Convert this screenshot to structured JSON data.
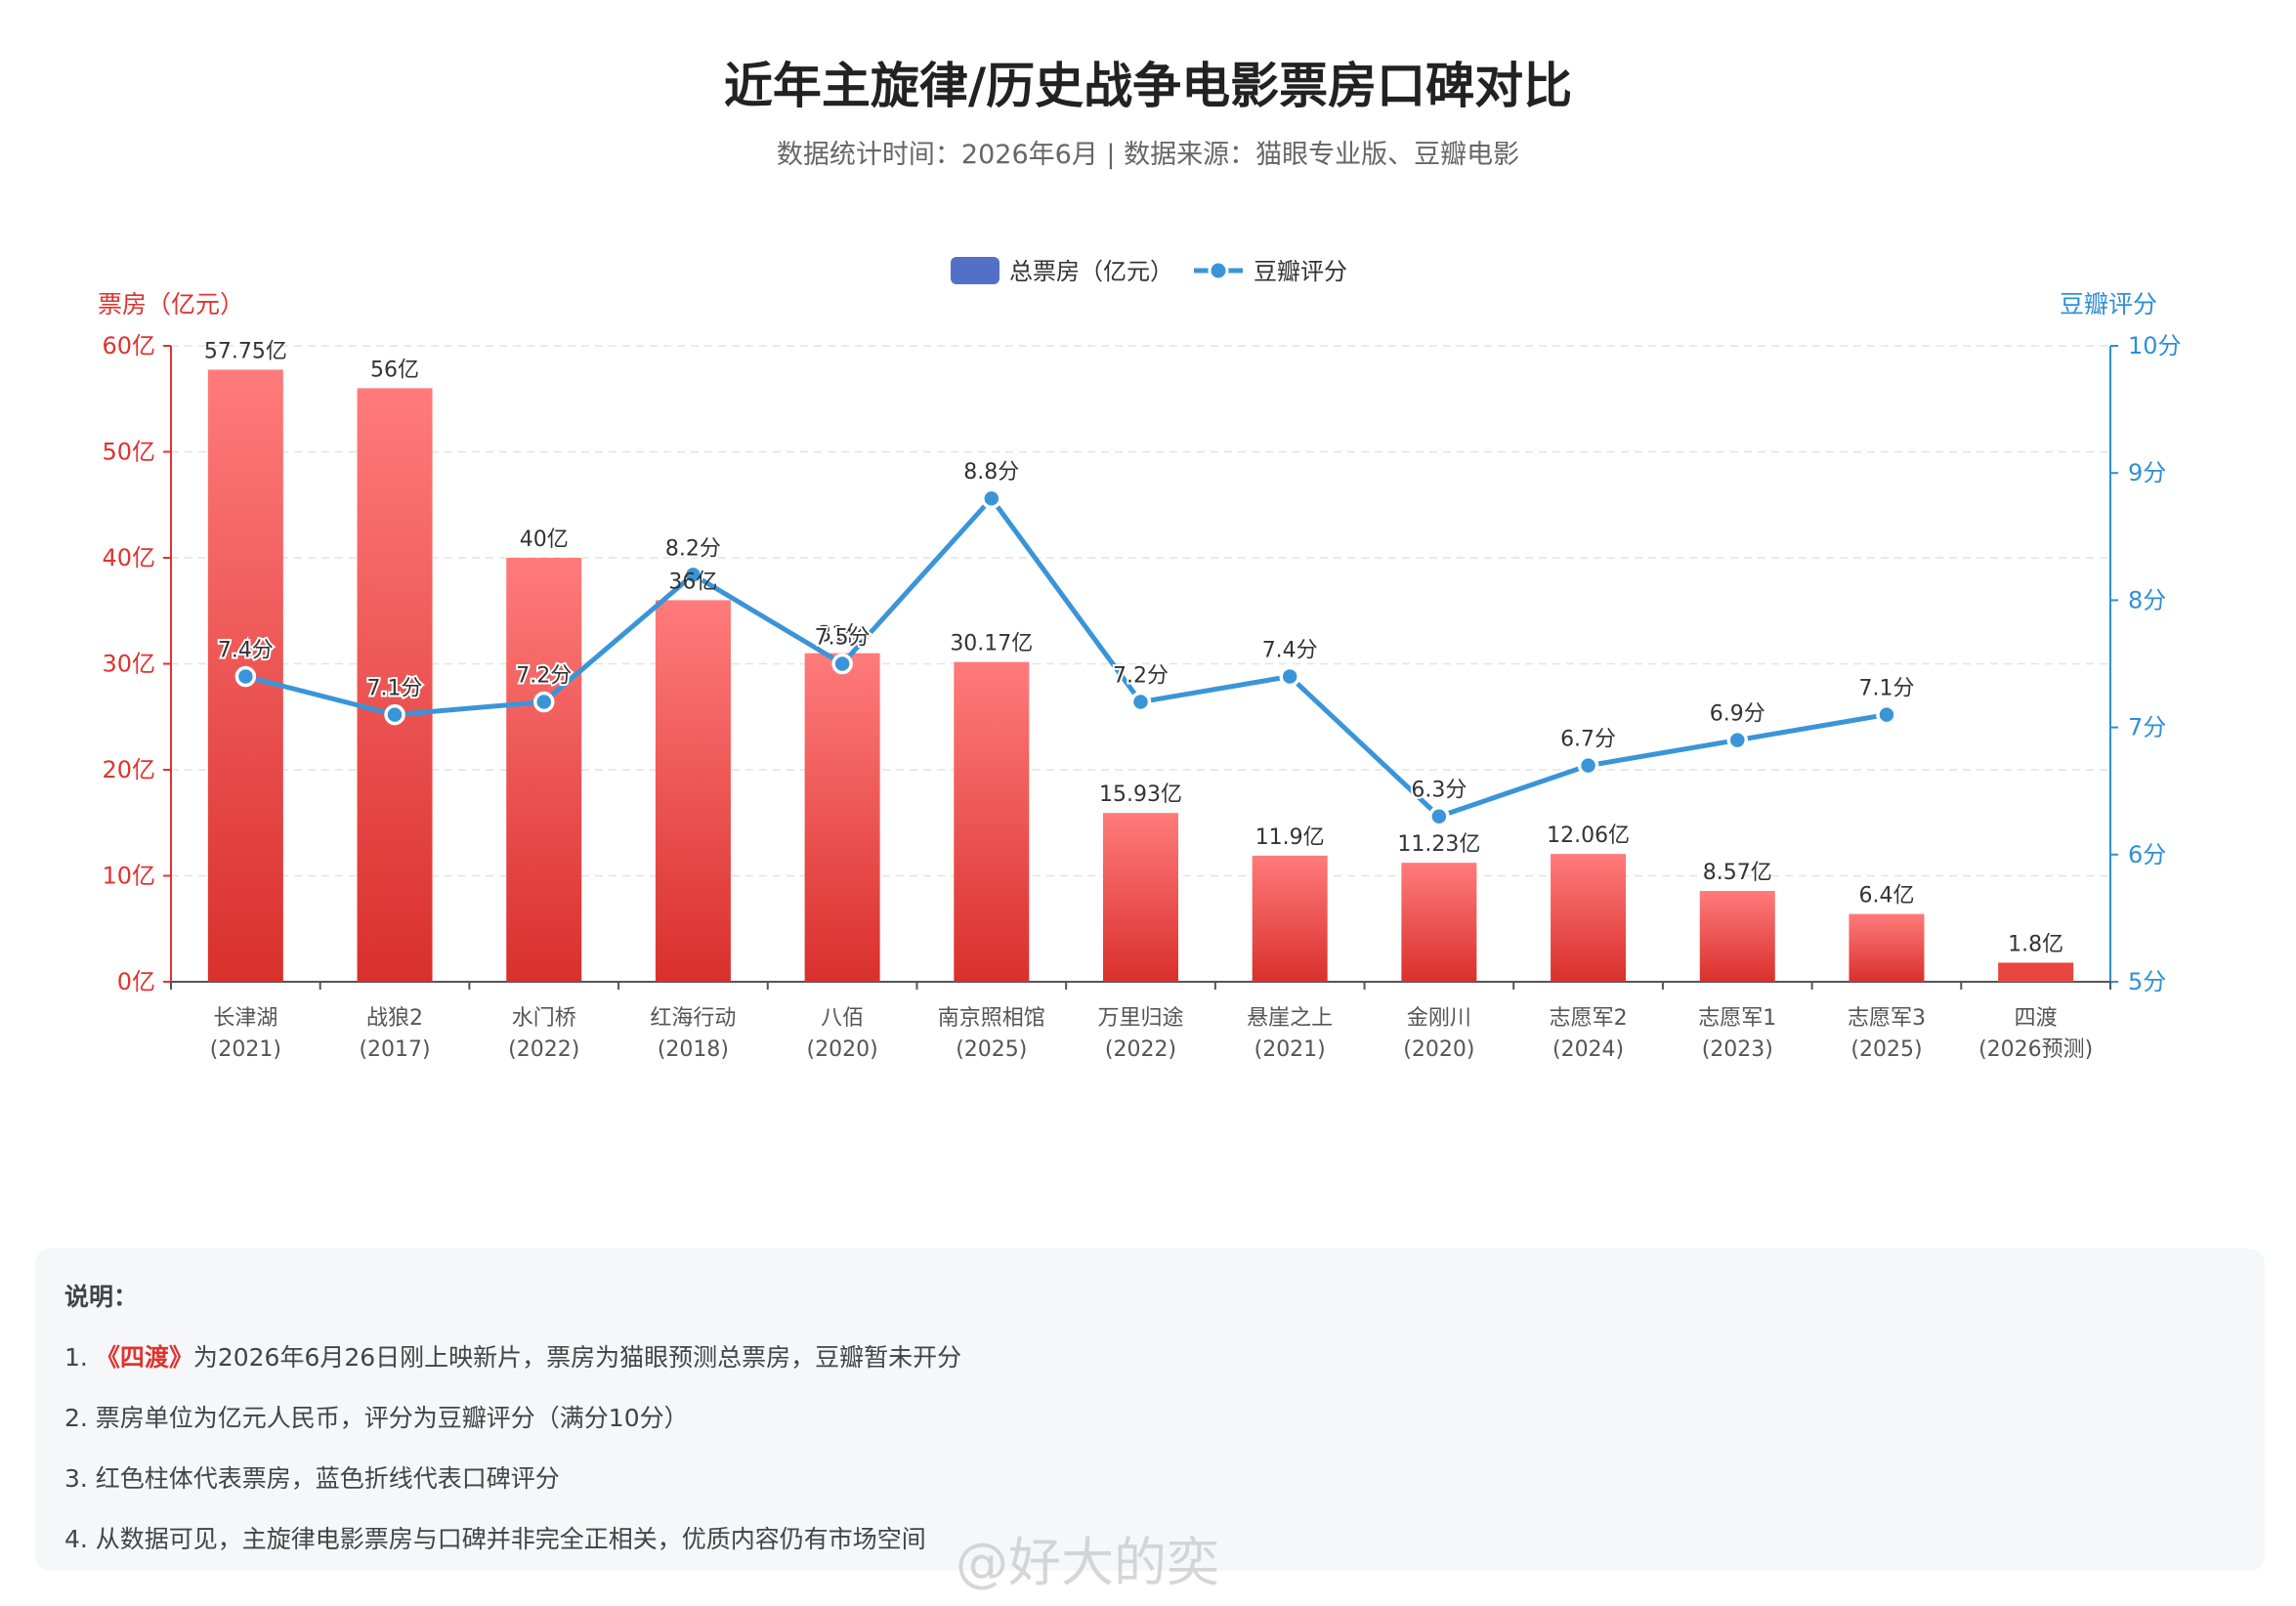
{
  "title": "近年主旋律/历史战争电影票房口碑对比",
  "subtitle": "数据统计时间：2026年6月 | 数据来源：猫眼专业版、豆瓣电影",
  "chart_data": {
    "type": "bar",
    "categories": [
      [
        "长津湖",
        "(2021)"
      ],
      [
        "战狼2",
        "(2017)"
      ],
      [
        "水门桥",
        "(2022)"
      ],
      [
        "红海行动",
        "(2018)"
      ],
      [
        "八佰",
        "(2020)"
      ],
      [
        "南京照相馆",
        "(2025)"
      ],
      [
        "万里归途",
        "(2022)"
      ],
      [
        "悬崖之上",
        "(2021)"
      ],
      [
        "金刚川",
        "(2020)"
      ],
      [
        "志愿军2",
        "(2024)"
      ],
      [
        "志愿军1",
        "(2023)"
      ],
      [
        "志愿军3",
        "(2025)"
      ],
      [
        "四渡",
        "(2026预测)"
      ]
    ],
    "series": [
      {
        "name": "总票房（亿元）",
        "type": "bar",
        "axis": "left",
        "values": [
          57.75,
          56,
          40,
          36,
          31,
          30.17,
          15.93,
          11.9,
          11.23,
          12.06,
          8.57,
          6.4,
          1.8
        ],
        "labels": [
          "57.75亿",
          "56亿",
          "40亿",
          "36亿",
          "31亿",
          "30.17亿",
          "15.93亿",
          "11.9亿",
          "11.23亿",
          "12.06亿",
          "8.57亿",
          "6.4亿",
          "1.8亿"
        ]
      },
      {
        "name": "豆瓣评分",
        "type": "line",
        "axis": "right",
        "values": [
          7.4,
          7.1,
          7.2,
          8.2,
          7.5,
          8.8,
          7.2,
          7.4,
          6.3,
          6.7,
          6.9,
          7.1,
          null
        ],
        "labels": [
          "7.4分",
          "7.1分",
          "7.2分",
          "8.2分",
          "7.5分",
          "8.8分",
          "7.2分",
          "7.4分",
          "6.3分",
          "6.7分",
          "6.9分",
          "7.1分",
          ""
        ]
      }
    ],
    "y_left": {
      "label": "票房（亿元）",
      "min": 0,
      "max": 60,
      "ticks": [
        "0亿",
        "10亿",
        "20亿",
        "30亿",
        "40亿",
        "50亿",
        "60亿"
      ]
    },
    "y_right": {
      "label": "豆瓣评分",
      "min": 5,
      "max": 10,
      "ticks": [
        "5分",
        "6分",
        "7分",
        "8分",
        "9分",
        "10分"
      ]
    },
    "legend_position": "top-center",
    "grid": true,
    "colors": {
      "bar_top": "#ff7b7b",
      "bar_bottom": "#d9302c",
      "last_bar": "#e8453f",
      "line": "#3a95d8",
      "left_axis": "#e0332f",
      "right_axis": "#2f8fd6",
      "legend_bar": "#5470c6"
    }
  },
  "notes": {
    "title": "说明：",
    "item1_prefix": "1. ",
    "item1_highlight": "《四渡》",
    "item1_rest": "为2026年6月26日刚上映新片，票房为猫眼预测总票房，豆瓣暂未开分",
    "item2": "2. 票房单位为亿元人民币，评分为豆瓣评分（满分10分）",
    "item3": "3. 红色柱体代表票房，蓝色折线代表口碑评分",
    "item4": "4. 从数据可见，主旋律电影票房与口碑并非完全正相关，优质内容仍有市场空间"
  },
  "watermark": "@好大的奕"
}
